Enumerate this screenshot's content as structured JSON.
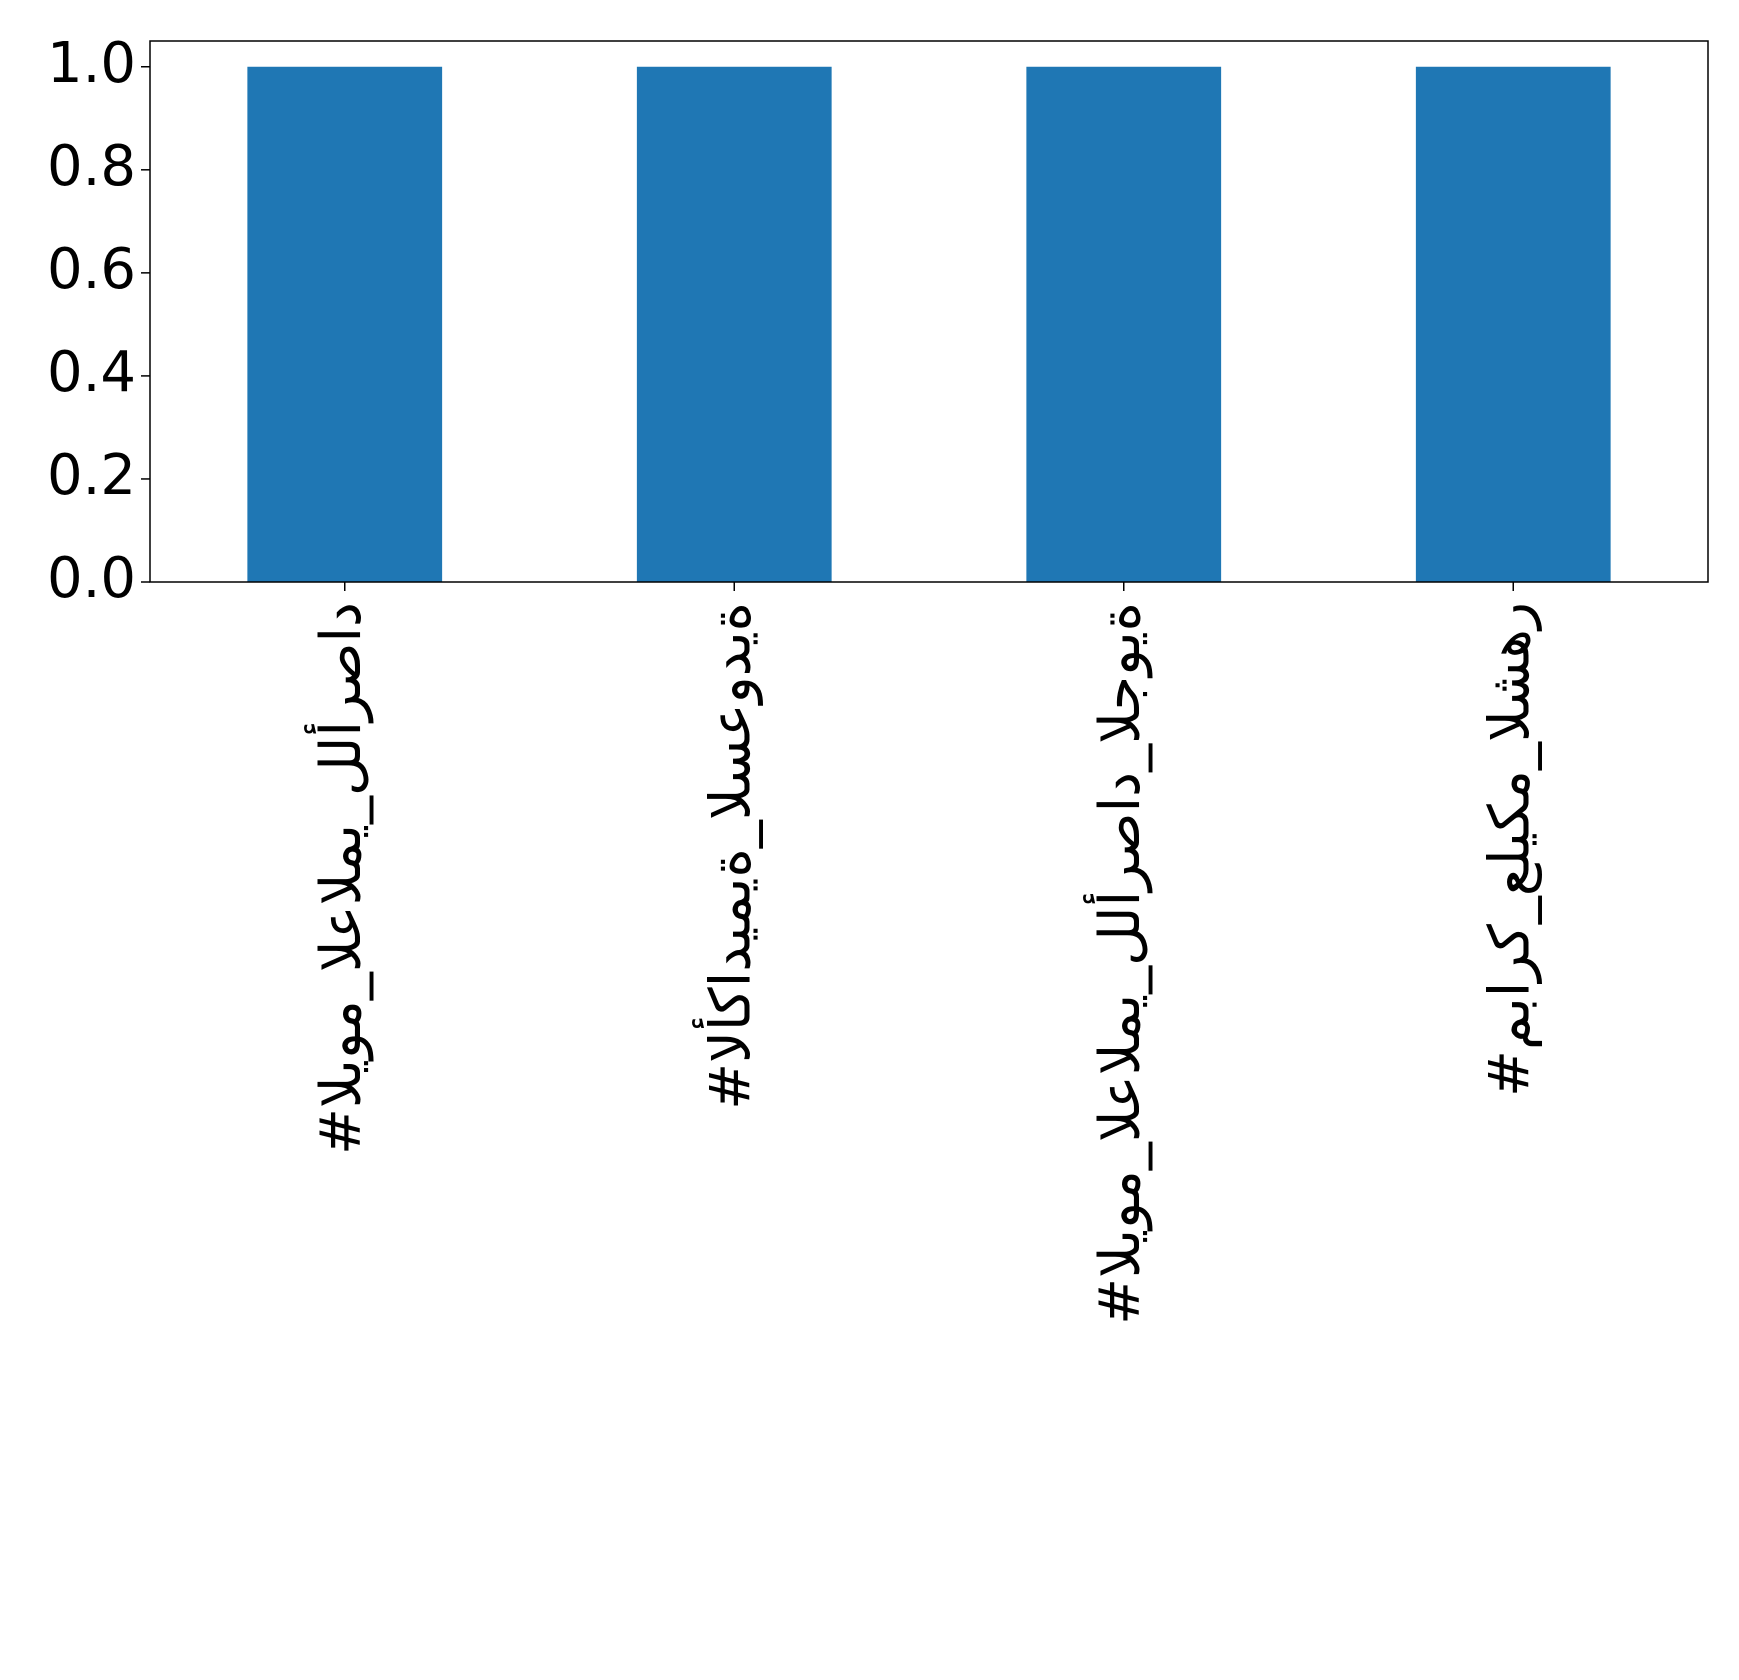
{
  "chart_data": {
    "type": "bar",
    "categories": [
      "#اليوم_العالمي_للأرصاد",
      "#الأكاديمية_السعودية",
      "#اليوم_العالمي_للأرصاد_الجوية",
      "#مبارك_عليكم_الشهر"
    ],
    "values": [
      1,
      1,
      1,
      1
    ],
    "color": "#1f77b4",
    "ylim": [
      0,
      1.05
    ],
    "yticks": [
      {
        "value": 0,
        "label": "0.0"
      },
      0.2,
      0.4,
      0.6,
      0.8,
      {
        "value": 1,
        "label": "1.0"
      }
    ],
    "grid": false
  }
}
